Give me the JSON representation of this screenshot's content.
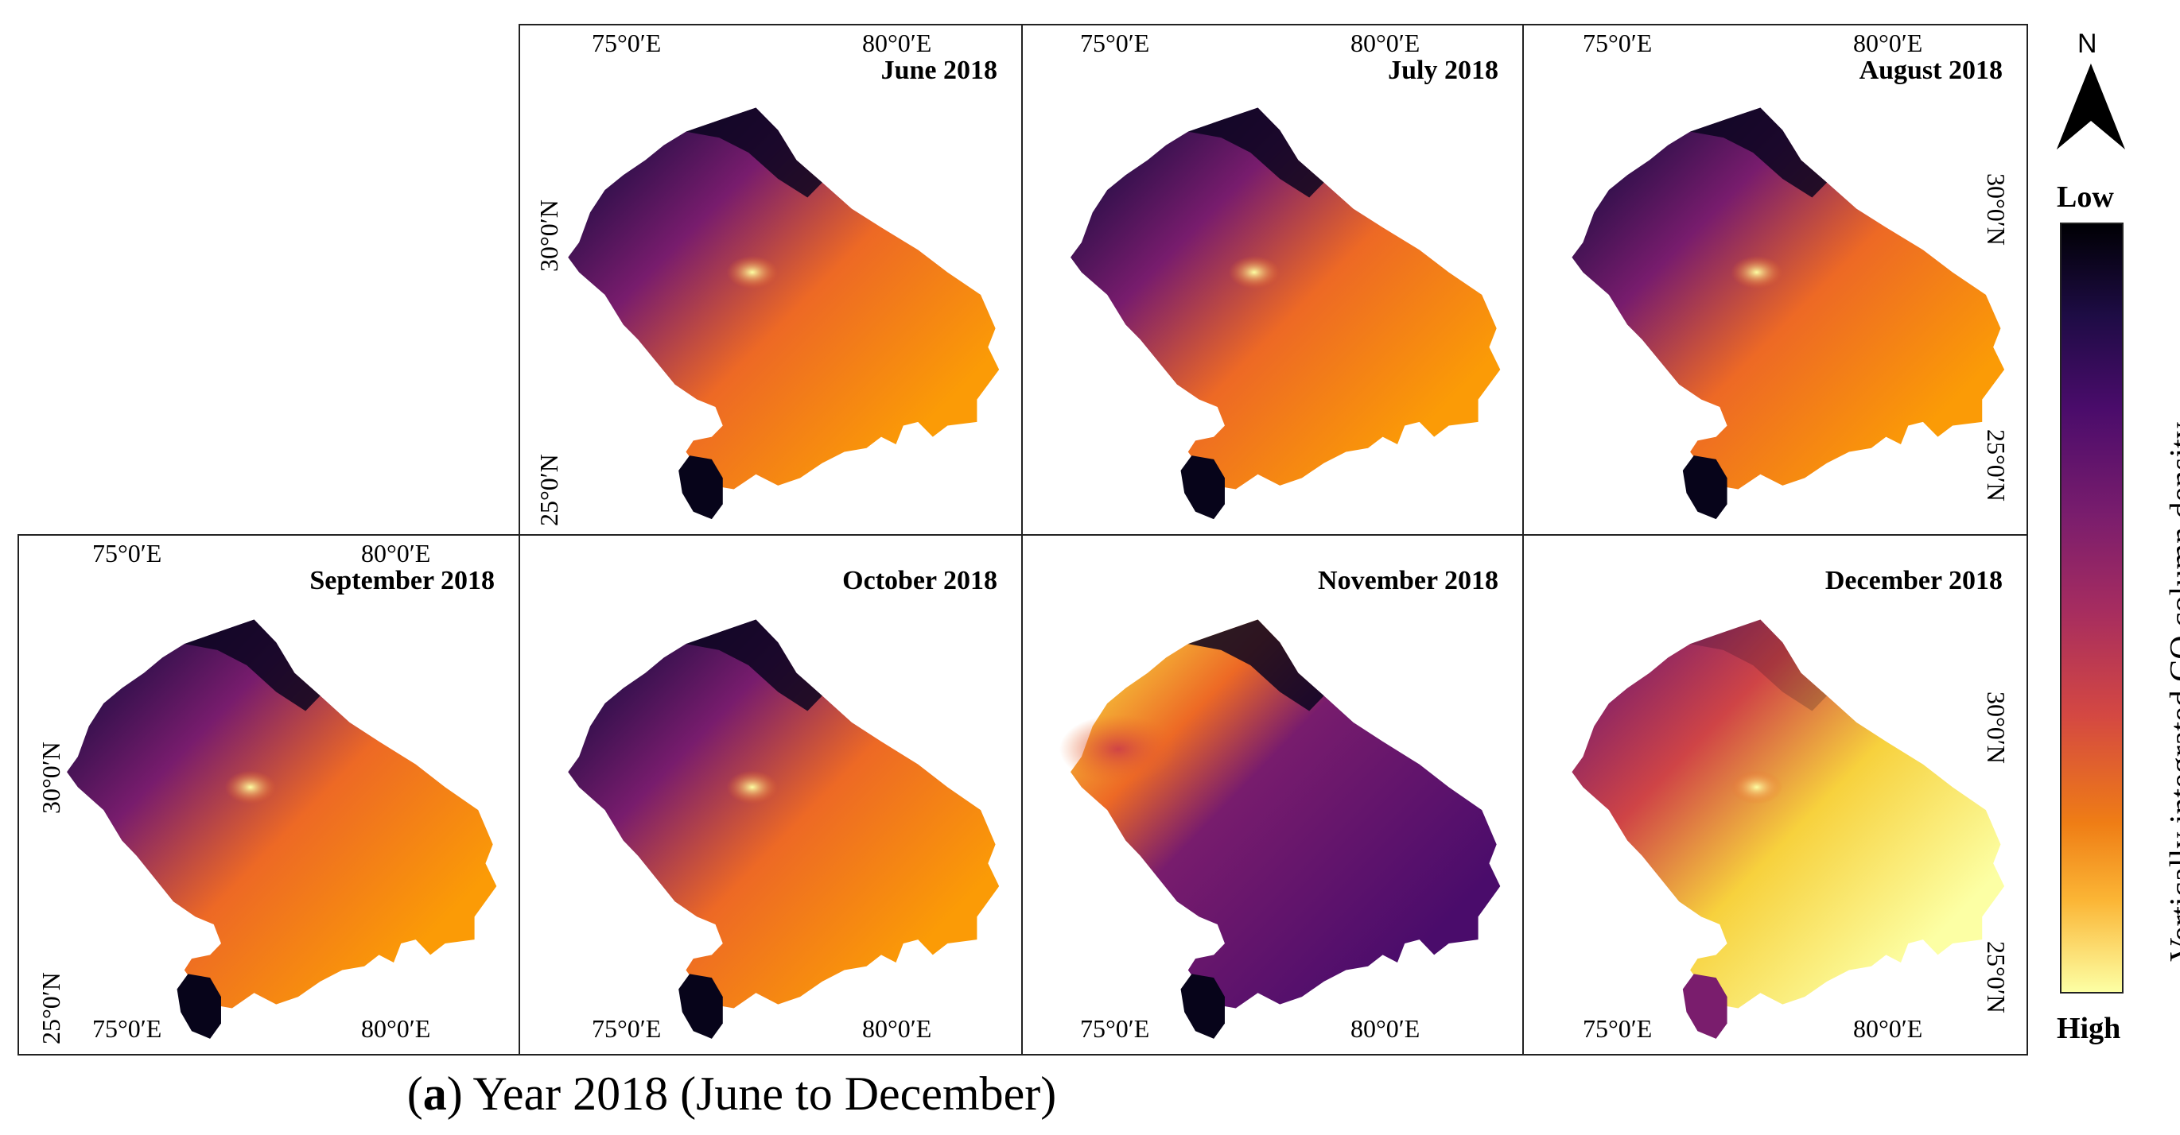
{
  "figure": {
    "caption_letter": "a",
    "caption_text": ") Year 2018 (June to December)",
    "caption_open": "("
  },
  "legend": {
    "north_arrow": "N",
    "low_label": "Low",
    "high_label": "High",
    "title": "Vertically integrated CO column density",
    "colormap": "inferno",
    "low_color": "#000004",
    "high_color": "#fcffa4"
  },
  "maps": [
    {
      "month": "June 2018",
      "top_lon": [
        "75°0′E",
        "80°0′E"
      ],
      "bottom_lon": [],
      "left_lat": [
        "30°0′N",
        "25°0′N"
      ],
      "right_lat": [],
      "intensity": 0.55,
      "west_high": 0.0
    },
    {
      "month": "July 2018",
      "top_lon": [
        "75°0′E",
        "80°0′E"
      ],
      "bottom_lon": [],
      "left_lat": [],
      "right_lat": [],
      "intensity": 0.55,
      "west_high": 0.0
    },
    {
      "month": "August 2018",
      "top_lon": [
        "75°0′E",
        "80°0′E"
      ],
      "bottom_lon": [],
      "left_lat": [],
      "right_lat": [
        "30°0′N",
        "25°0′N"
      ],
      "intensity": 0.55,
      "west_high": 0.0
    },
    {
      "month": "September 2018",
      "top_lon": [
        "75°0′E",
        "80°0′E"
      ],
      "bottom_lon": [
        "75°0′E",
        "80°0′E"
      ],
      "left_lat": [
        "30°0′N",
        "25°0′N"
      ],
      "right_lat": [],
      "intensity": 0.55,
      "west_high": 0.0
    },
    {
      "month": "October 2018",
      "top_lon": [],
      "bottom_lon": [
        "75°0′E",
        "80°0′E"
      ],
      "left_lat": [],
      "right_lat": [],
      "intensity": 0.55,
      "west_high": 0.0
    },
    {
      "month": "November 2018",
      "top_lon": [],
      "bottom_lon": [
        "75°0′E",
        "80°0′E"
      ],
      "left_lat": [],
      "right_lat": [],
      "intensity": 0.35,
      "west_high": 1.0
    },
    {
      "month": "December 2018",
      "top_lon": [],
      "bottom_lon": [
        "75°0′E",
        "80°0′E"
      ],
      "left_lat": [],
      "right_lat": [
        "30°0′N",
        "25°0′N"
      ],
      "intensity": 0.78,
      "west_high": 0.0
    }
  ]
}
